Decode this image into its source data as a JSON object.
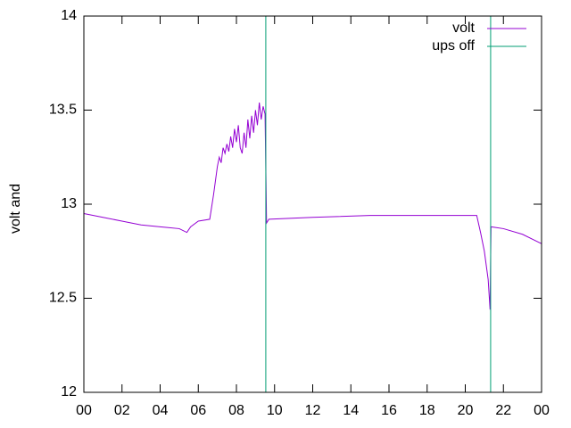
{
  "chart_data": {
    "type": "line",
    "ylabel": "volt and",
    "xlim": [
      0,
      24
    ],
    "xticks": [
      {
        "value": 0,
        "label": "00"
      },
      {
        "value": 2,
        "label": "02"
      },
      {
        "value": 4,
        "label": "04"
      },
      {
        "value": 6,
        "label": "06"
      },
      {
        "value": 8,
        "label": "08"
      },
      10,
      12,
      14,
      16,
      18,
      20,
      22,
      {
        "value": 24,
        "label": "00"
      }
    ],
    "ylim": [
      12,
      14
    ],
    "yticks": [
      12,
      12.5,
      13,
      13.5,
      14
    ],
    "legend": "top-right",
    "series": [
      {
        "name": "volt",
        "color": "#9400d3",
        "style": "line",
        "x": [
          0,
          1,
          2,
          3,
          4,
          5,
          5.4,
          5.6,
          6,
          6.6,
          6.8,
          7.0,
          7.1,
          7.2,
          7.3,
          7.4,
          7.5,
          7.6,
          7.7,
          7.8,
          7.9,
          8.0,
          8.1,
          8.2,
          8.3,
          8.4,
          8.5,
          8.6,
          8.7,
          8.8,
          8.9,
          9.0,
          9.1,
          9.2,
          9.3,
          9.4,
          9.5,
          9.55,
          9.58,
          9.7,
          12,
          15,
          18,
          20.6,
          20.8,
          21.0,
          21.2,
          21.3,
          21.35,
          22,
          23,
          24
        ],
        "values": [
          12.95,
          12.93,
          12.91,
          12.89,
          12.88,
          12.87,
          12.85,
          12.88,
          12.91,
          12.92,
          13.05,
          13.2,
          13.25,
          13.22,
          13.3,
          13.27,
          13.32,
          13.28,
          13.36,
          13.3,
          13.4,
          13.33,
          13.42,
          13.3,
          13.27,
          13.38,
          13.3,
          13.45,
          13.35,
          13.47,
          13.38,
          13.5,
          13.42,
          13.54,
          13.45,
          13.52,
          13.48,
          13.13,
          12.9,
          12.92,
          12.93,
          12.94,
          12.94,
          12.94,
          12.85,
          12.75,
          12.6,
          12.44,
          12.88,
          12.87,
          12.84,
          12.79
        ]
      },
      {
        "name": "ups off",
        "color": "#009e73",
        "style": "impulses",
        "x": [
          9.54,
          21.33
        ],
        "values": [
          14,
          14
        ]
      }
    ]
  }
}
